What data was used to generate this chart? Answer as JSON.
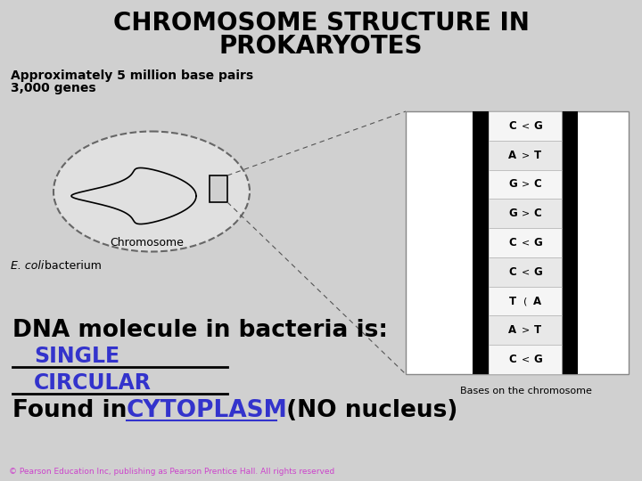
{
  "title_line1": "CHROMOSOME STRUCTURE IN",
  "title_line2": "PROKARYOTES",
  "subtitle_line1": "Approximately 5 million base pairs",
  "subtitle_line2": "3,000 genes",
  "chromosome_label": "Chromosome",
  "ecoli_label_italic": "E. coli",
  "ecoli_label_normal": " bacterium",
  "bases_label": "Bases on the chromosome",
  "dna_text": "DNA molecule in bacteria is:",
  "single_text": "SINGLE",
  "circular_text": "CIRCULAR",
  "found_text_pre": "Found in ",
  "cytoplasm_text": "CYTOPLASM",
  "found_text_post": " (NO nucleus)",
  "copyright": "© Pearson Education Inc, publishing as Pearson Prentice Hall. All rights reserved",
  "base_pairs": [
    [
      "C",
      "<",
      "G"
    ],
    [
      "A",
      ">",
      "T"
    ],
    [
      "G",
      ">",
      "C"
    ],
    [
      "G",
      ">",
      "C"
    ],
    [
      "C",
      "<",
      "G"
    ],
    [
      "C",
      "<",
      "G"
    ],
    [
      "T",
      "(",
      "A"
    ],
    [
      "A",
      ">",
      "T"
    ],
    [
      "C",
      "<",
      "G"
    ]
  ],
  "bg_color": "#d0d0d0",
  "title_color": "#000000",
  "blue_color": "#3333cc",
  "black_color": "#000000",
  "copyright_color": "#cc44cc",
  "box_bg": "#ffffff",
  "title_fontsize": 20,
  "subtitle_fontsize": 10,
  "label_fontsize": 9,
  "bases_label_fontsize": 8,
  "dna_large_fontsize": 19,
  "dna_medium_fontsize": 17,
  "copyright_fontsize": 6.5
}
